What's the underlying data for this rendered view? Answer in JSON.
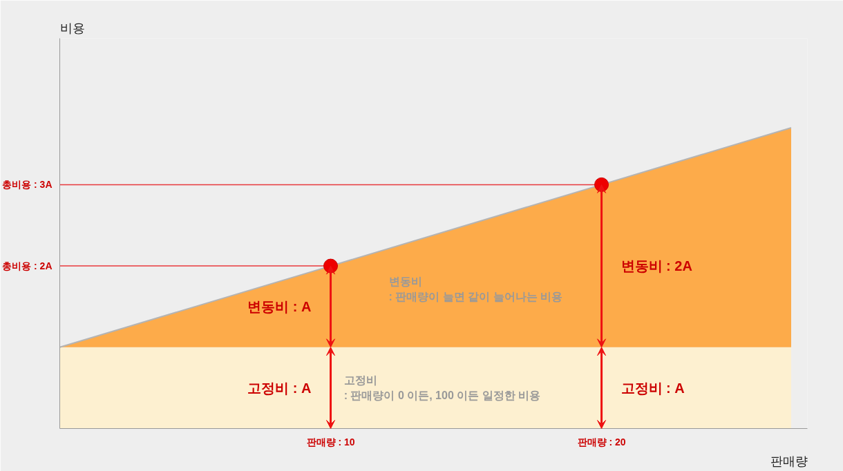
{
  "chart_data": {
    "type": "area",
    "stacked": true,
    "xlabel": "판매량",
    "ylabel": "비용",
    "xlim": [
      0,
      27.6
    ],
    "ylim": [
      0,
      4.8
    ],
    "xticks": [
      {
        "value": 10,
        "label": "판매량 : 10"
      },
      {
        "value": 20,
        "label": "판매량 : 20"
      }
    ],
    "yticks": [
      {
        "value": 2,
        "label": "총비용 : 2A"
      },
      {
        "value": 3,
        "label": "총비용 : 3A"
      }
    ],
    "grid": false,
    "series": [
      {
        "name": "고정비\n: 판매량이 0 이든, 100 이든 일정한 비용",
        "color": "#fdf0d0",
        "x": [
          0,
          10,
          20,
          27
        ],
        "values": [
          1,
          1,
          1,
          1
        ]
      },
      {
        "name": "변동비\n: 판매량이 늘면 같이 늘어나는 비용",
        "color": "#fdab4a",
        "x": [
          0,
          10,
          20,
          27
        ],
        "values": [
          0,
          1,
          2,
          2.7
        ]
      },
      {
        "type": "line",
        "color": "#e8383d",
        "x": [
          0,
          10
        ],
        "values": [
          2,
          2
        ]
      },
      {
        "type": "line",
        "color": "#e8383d",
        "x": [
          0,
          20
        ],
        "values": [
          3,
          3
        ]
      },
      {
        "type": "scatter",
        "marker": "circle",
        "color": "#ee0000",
        "x": [
          10,
          20
        ],
        "values": [
          2,
          3
        ]
      }
    ],
    "annotations": [
      "고정비 : A",
      "변동비 : A",
      "고정비 : A",
      "변동비 : 2A"
    ]
  }
}
